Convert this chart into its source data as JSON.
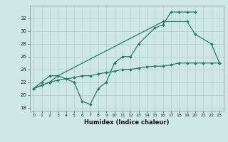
{
  "xlabel": "Humidex (Indice chaleur)",
  "bg_color": "#cde8e5",
  "grid_color": "#b0d0ce",
  "line_color": "#2a7a6a",
  "ylim": [
    17.5,
    34.0
  ],
  "xlim": [
    -0.5,
    23.5
  ],
  "yticks": [
    18,
    20,
    22,
    24,
    26,
    28,
    30,
    32
  ],
  "xticks": [
    0,
    1,
    2,
    3,
    4,
    5,
    6,
    7,
    8,
    9,
    10,
    11,
    12,
    13,
    14,
    15,
    16,
    17,
    18,
    19,
    20,
    21,
    22,
    23
  ],
  "l1_x": [
    0,
    1,
    2,
    3,
    5,
    6,
    7,
    8,
    9,
    10,
    11,
    12,
    13,
    15,
    16,
    17,
    18,
    19,
    20
  ],
  "l1_y": [
    21,
    22,
    23,
    23,
    22,
    19,
    18.5,
    21,
    22,
    25,
    26,
    26,
    28,
    30.5,
    31,
    33,
    33,
    33,
    33
  ],
  "l2_x": [
    0,
    2,
    3,
    16,
    19,
    20,
    22,
    23
  ],
  "l2_y": [
    21,
    22,
    23,
    31.5,
    31.5,
    29.5,
    28,
    25
  ],
  "l3_x": [
    0,
    1,
    2,
    3,
    4,
    5,
    6,
    7,
    8,
    9,
    10,
    11,
    12,
    13,
    14,
    15,
    16,
    17,
    18,
    19,
    20,
    21,
    22,
    23
  ],
  "l3_y": [
    21,
    21.5,
    22,
    22.3,
    22.5,
    22.7,
    23,
    23,
    23.3,
    23.5,
    23.7,
    24,
    24,
    24.2,
    24.4,
    24.5,
    24.5,
    24.7,
    25,
    25,
    25,
    25,
    25,
    25
  ]
}
